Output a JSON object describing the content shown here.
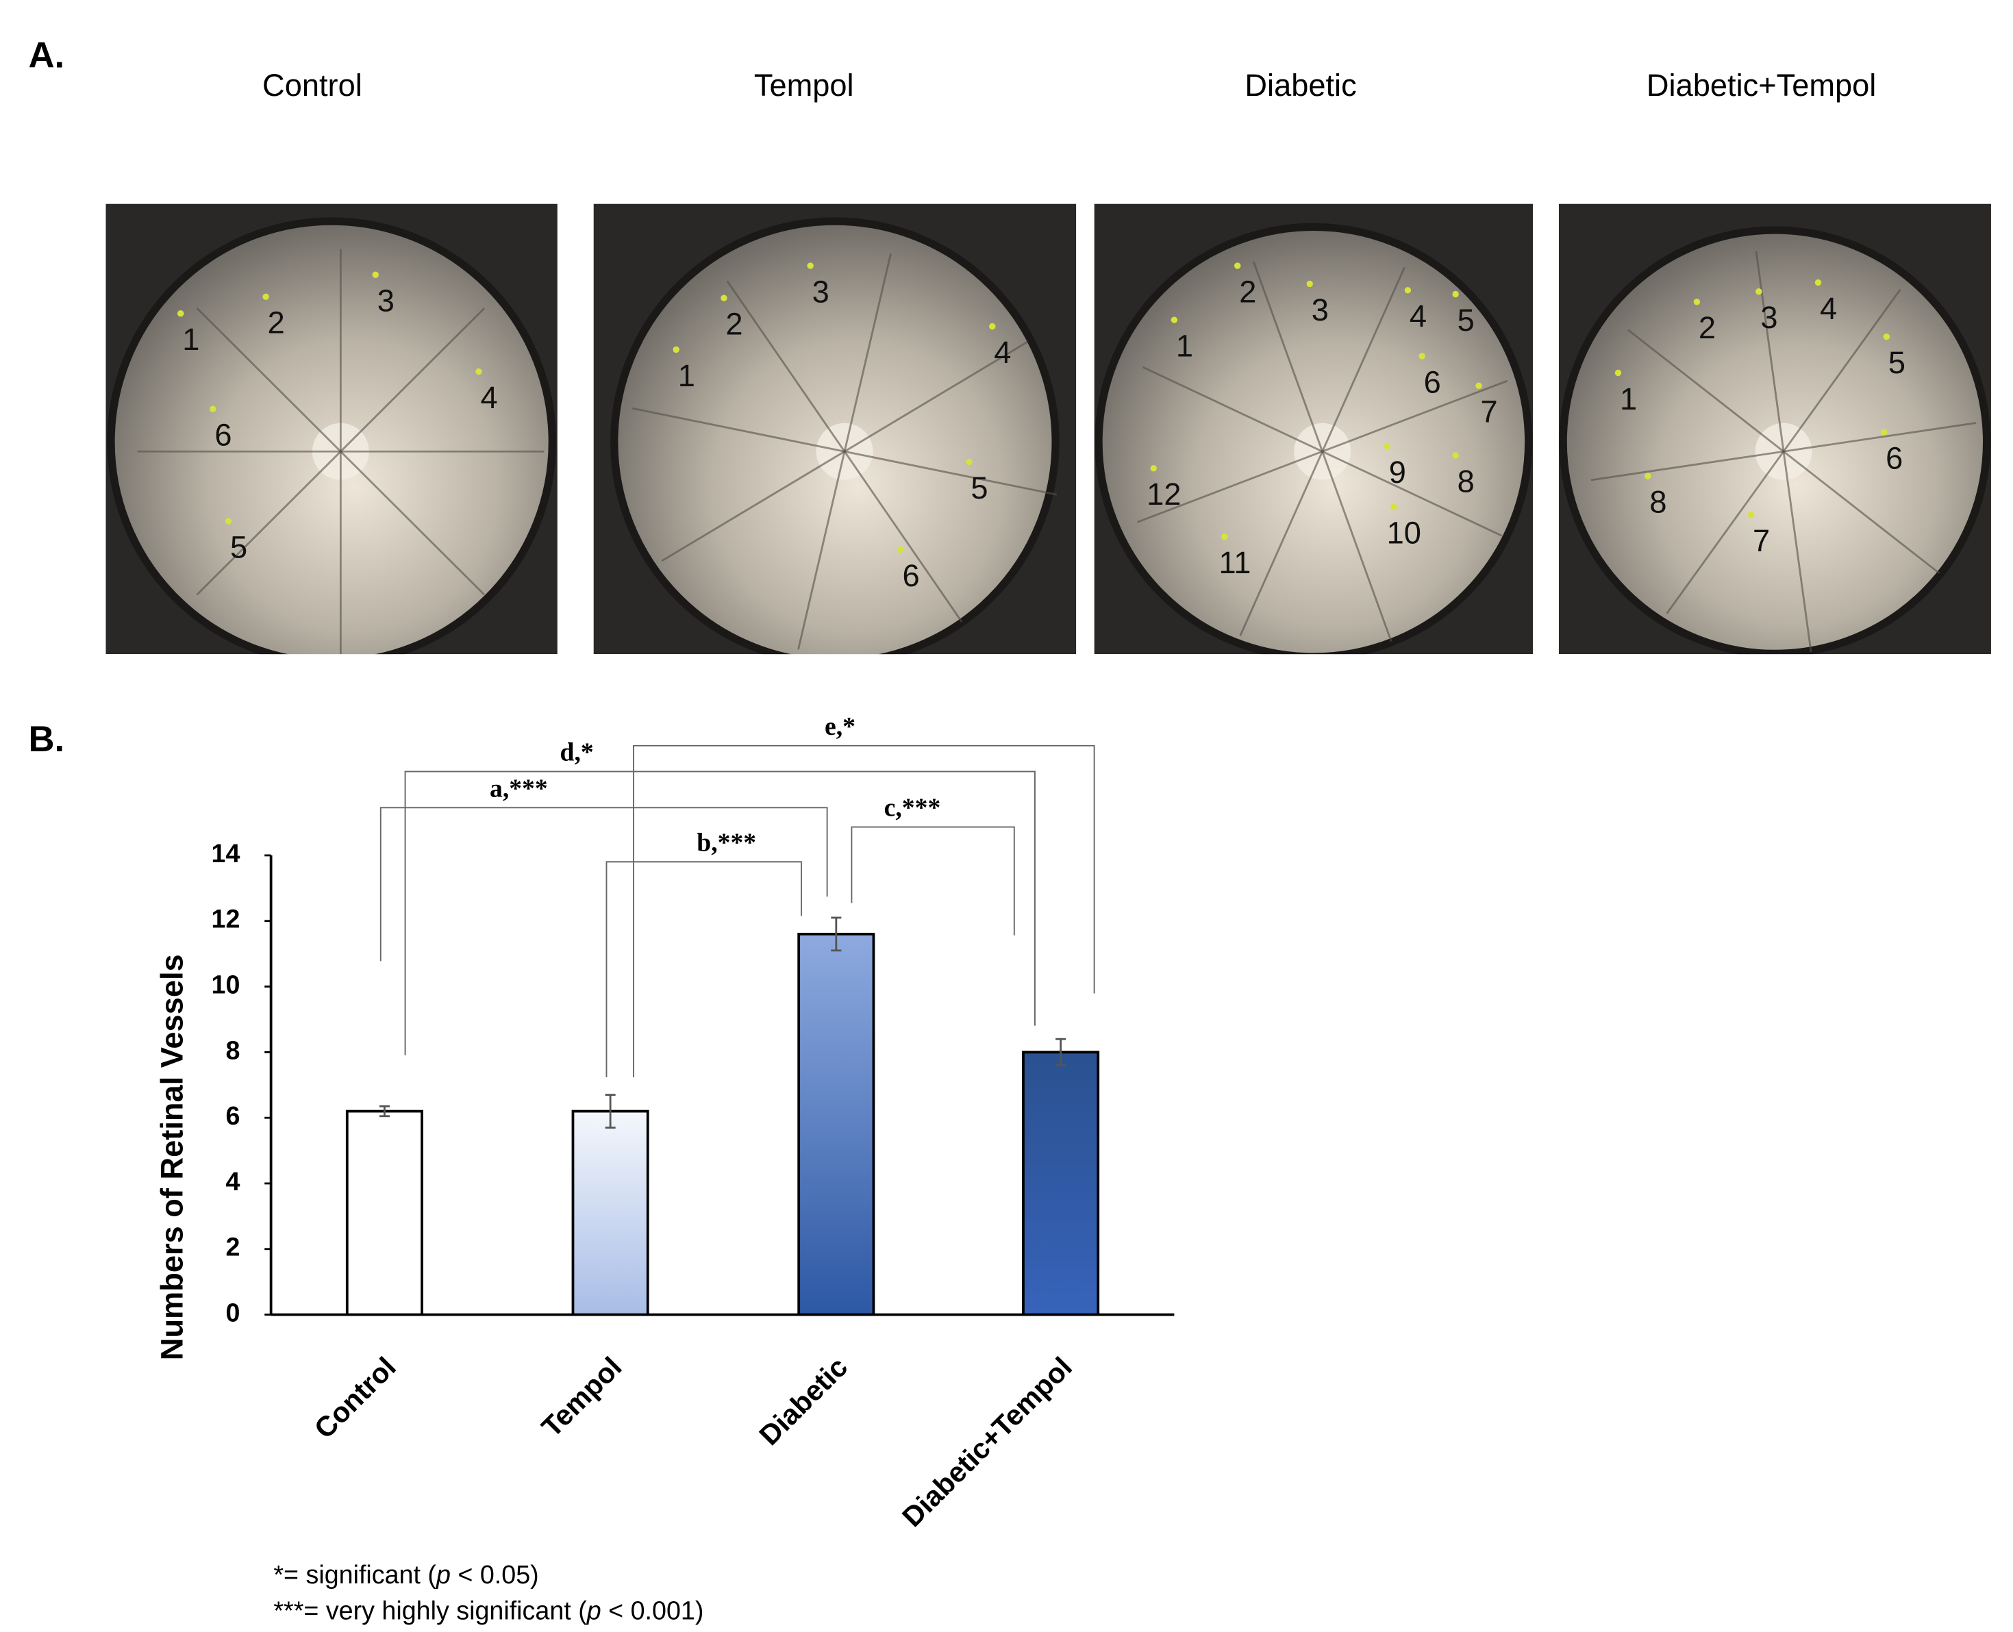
{
  "panel_a": {
    "label": "A.",
    "photos": [
      {
        "title": "Control",
        "markers": [
          1,
          2,
          3,
          4,
          5,
          6
        ]
      },
      {
        "title": "Tempol",
        "markers": [
          1,
          2,
          3,
          4,
          5,
          6
        ]
      },
      {
        "title": "Diabetic",
        "markers": [
          1,
          2,
          3,
          4,
          5,
          6,
          7,
          8,
          9,
          10,
          11,
          12
        ]
      },
      {
        "title": "Diabetic+Tempol",
        "markers": [
          1,
          2,
          3,
          4,
          5,
          6,
          7,
          8
        ]
      }
    ]
  },
  "panel_b": {
    "label": "B."
  },
  "chart_data": {
    "type": "bar",
    "y_label": "Numbers of Retinal Vessels",
    "categories": [
      "Control",
      "Tempol",
      "Diabetic",
      "Diabetic+Tempol"
    ],
    "values": [
      6.2,
      6.2,
      11.6,
      8.0
    ],
    "errors": [
      0.15,
      0.5,
      0.5,
      0.4
    ],
    "colors": [
      [
        "#ffffff",
        "#ffffff"
      ],
      [
        "#f4f7fc",
        "#a8bde6"
      ],
      [
        "#8eaadf",
        "#2d58a4"
      ],
      [
        "#2a5190",
        "#3763ba"
      ]
    ],
    "ylim": [
      0,
      14
    ],
    "yticks": [
      0,
      2,
      4,
      6,
      8,
      10,
      12,
      14
    ],
    "significance": [
      "a,***",
      "b,***",
      "c,***",
      "d,*",
      "e,*"
    ],
    "footnotes": [
      [
        "*= significant (",
        "p",
        " < 0.05)"
      ],
      [
        "***= very highly significant (",
        "p",
        " < 0.001)"
      ]
    ]
  }
}
